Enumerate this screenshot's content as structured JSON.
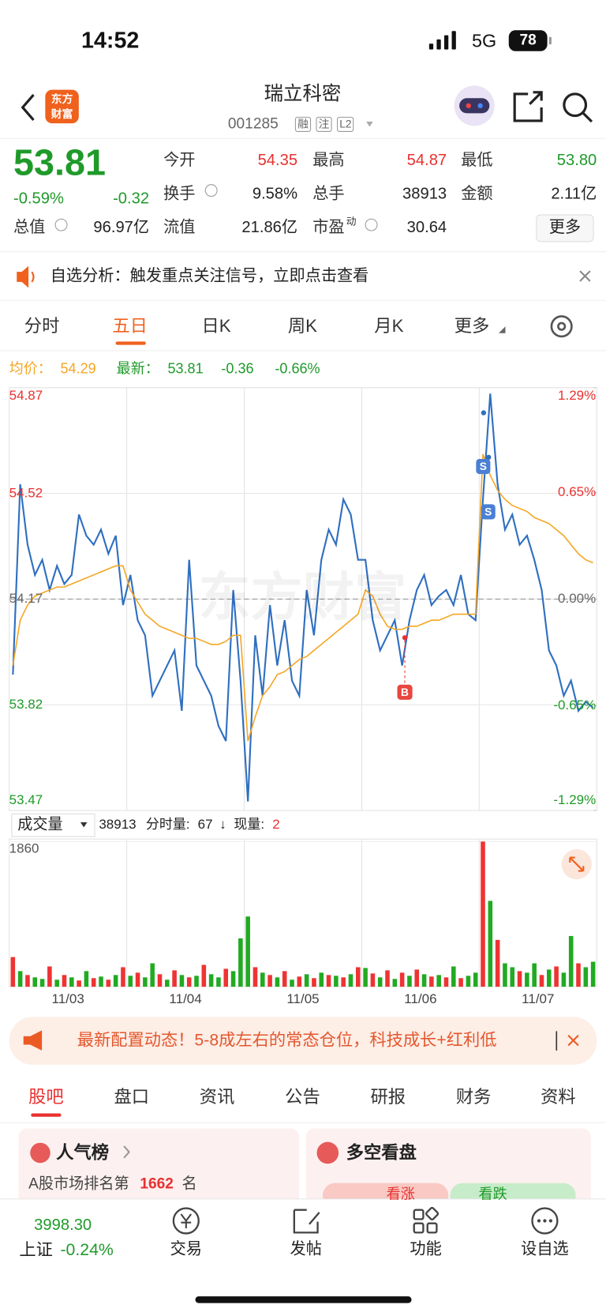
{
  "status_bar": {
    "time": "14:52",
    "network": "5G",
    "battery": "78"
  },
  "header": {
    "logo": [
      "东方",
      "财富"
    ],
    "title": "瑞立科密",
    "code": "001285",
    "badges": [
      "融",
      "注",
      "L2"
    ]
  },
  "quote": {
    "price": "53.81",
    "change_pct": "-0.59%",
    "change": "-0.32",
    "fields": [
      {
        "label": "今开",
        "value": "54.35",
        "color": "#e8312f"
      },
      {
        "label": "最高",
        "value": "54.87",
        "color": "#e8312f"
      },
      {
        "label": "最低",
        "value": "53.80",
        "color": "#1f9a2a"
      },
      {
        "label": "换手",
        "value": "9.58%"
      },
      {
        "label": "总手",
        "value": "38913"
      },
      {
        "label": "金额",
        "value": "2.11亿"
      },
      {
        "label": "总值",
        "value": "96.97亿"
      },
      {
        "label": "流值",
        "value": "21.86亿"
      },
      {
        "label": "市盈",
        "sup": "动",
        "value": "30.64"
      }
    ],
    "more": "更多"
  },
  "alert": "自选分析：触发重点关注信号，立即点击查看",
  "period_tabs": {
    "items": [
      "分时",
      "五日",
      "日K",
      "周K",
      "月K",
      "更多"
    ],
    "active": 1
  },
  "chart_data": [
    {
      "type": "line",
      "watermark": "东方财富",
      "avg_price": 54.29,
      "latest": 53.81,
      "change": -0.36,
      "change_pct": "-0.66%",
      "signal_labels": [
        "S",
        "S",
        "B"
      ],
      "ylim": [
        53.47,
        54.87
      ],
      "yticks": [
        54.87,
        54.52,
        54.17,
        53.82,
        53.47
      ],
      "y2lim": [
        -1.29,
        1.29
      ],
      "y2ticks": [
        {
          "value": 1.29,
          "label": "1.29%"
        },
        {
          "value": 0.65,
          "label": "0.65%"
        },
        {
          "value": 0,
          "label": "0.00%"
        },
        {
          "value": -0.65,
          "label": "-0.65%"
        },
        {
          "value": -1.29,
          "label": "-1.29%"
        }
      ],
      "series": [
        {
          "name": "均价：",
          "color": "#f5a623",
          "values": [
            [
              53.95,
              54.1,
              54.15,
              54.18,
              54.19,
              54.2,
              54.21,
              54.21,
              54.22,
              54.23,
              54.24,
              54.25,
              54.26,
              54.27,
              54.28,
              54.28
            ],
            [
              54.2,
              54.16,
              54.12,
              54.1,
              54.08,
              54.07,
              54.06,
              54.05,
              54.04,
              54.04,
              54.03,
              54.02,
              54.02,
              54.03,
              54.05,
              54.05
            ],
            [
              53.7,
              53.78,
              53.85,
              53.88,
              53.92,
              53.93,
              53.95,
              53.97,
              53.98,
              54.0,
              54.02,
              54.04,
              54.06,
              54.08,
              54.1,
              54.12
            ],
            [
              54.2,
              54.18,
              54.12,
              54.08,
              54.07,
              54.07,
              54.08,
              54.08,
              54.09,
              54.1,
              54.1,
              54.11,
              54.12,
              54.12,
              54.12,
              54.12
            ],
            [
              54.65,
              54.58,
              54.53,
              54.5,
              54.48,
              54.47,
              54.46,
              54.44,
              54.43,
              54.42,
              54.4,
              54.38,
              54.35,
              54.32,
              54.3,
              54.29
            ]
          ]
        },
        {
          "name": "最新：",
          "color": "#2f6fc0",
          "values": [
            [
              53.92,
              54.55,
              54.35,
              54.25,
              54.3,
              54.2,
              54.28,
              54.22,
              54.25,
              54.45,
              54.38,
              54.35,
              54.4,
              54.32,
              54.38,
              54.15
            ],
            [
              54.25,
              54.1,
              54.05,
              53.85,
              53.9,
              53.95,
              54.0,
              53.8,
              54.3,
              53.95,
              53.9,
              53.85,
              53.75,
              53.7,
              54.2,
              53.9
            ],
            [
              53.5,
              54.05,
              53.85,
              54.15,
              53.95,
              54.1,
              53.9,
              53.85,
              54.2,
              54.05,
              54.3,
              54.4,
              54.35,
              54.5,
              54.45,
              54.3
            ],
            [
              54.3,
              54.1,
              54.0,
              54.05,
              54.1,
              53.95,
              54.1,
              54.2,
              54.25,
              54.15,
              54.18,
              54.2,
              54.15,
              54.25,
              54.12,
              54.1
            ],
            [
              54.5,
              54.85,
              54.55,
              54.4,
              54.45,
              54.35,
              54.38,
              54.3,
              54.2,
              54.0,
              53.95,
              53.85,
              53.9,
              53.8,
              53.83,
              53.81
            ]
          ]
        }
      ]
    },
    {
      "type": "bar",
      "volume_label": "成交量",
      "total": "38913",
      "tick_vol_label": "分时量:",
      "tick_vol": "67",
      "arrow": "↓",
      "cur_label": "现量:",
      "cur": "2",
      "categories": [
        "11/03",
        "11/04",
        "11/05",
        "11/06",
        "11/07"
      ],
      "ylim": [
        0,
        1860
      ],
      "yticks": [
        1860
      ],
      "values": [
        [
          380,
          200,
          150,
          120,
          100,
          260,
          90,
          150,
          120,
          80,
          200,
          110,
          130,
          90,
          150,
          250
        ],
        [
          140,
          180,
          120,
          300,
          160,
          90,
          210,
          150,
          120,
          140,
          280,
          160,
          120,
          230,
          200,
          620
        ],
        [
          900,
          250,
          180,
          150,
          120,
          200,
          90,
          130,
          160,
          110,
          180,
          150,
          140,
          120,
          160,
          250
        ],
        [
          240,
          170,
          120,
          210,
          100,
          180,
          140,
          220,
          160,
          130,
          150,
          120,
          260,
          110,
          140,
          180
        ],
        [
          1860,
          1100,
          600,
          300,
          250,
          200,
          180,
          300,
          150,
          220,
          260,
          180,
          650,
          300,
          250,
          320
        ]
      ],
      "colors": [
        [
          "#e33",
          "#2a2",
          "#e33",
          "#2a2",
          "#2a2",
          "#e33",
          "#2a2",
          "#e33",
          "#2a2",
          "#e33",
          "#2a2",
          "#e33",
          "#2a2",
          "#e33",
          "#2a2",
          "#e33"
        ],
        [
          "#2a2",
          "#e33",
          "#2a2",
          "#2a2",
          "#e33",
          "#2a2",
          "#e33",
          "#2a2",
          "#e33",
          "#2a2",
          "#e33",
          "#2a2",
          "#2a2",
          "#e33",
          "#2a2",
          "#2a2"
        ],
        [
          "#2a2",
          "#e33",
          "#2a2",
          "#e33",
          "#2a2",
          "#e33",
          "#2a2",
          "#e33",
          "#2a2",
          "#e33",
          "#2a2",
          "#e33",
          "#2a2",
          "#e33",
          "#2a2",
          "#e33"
        ],
        [
          "#2a2",
          "#e33",
          "#2a2",
          "#e33",
          "#2a2",
          "#e33",
          "#2a2",
          "#e33",
          "#2a2",
          "#e33",
          "#2a2",
          "#e33",
          "#2a2",
          "#e33",
          "#2a2",
          "#2a2"
        ],
        [
          "#e33",
          "#2a2",
          "#e33",
          "#2a2",
          "#2a2",
          "#e33",
          "#2a2",
          "#2a2",
          "#e33",
          "#2a2",
          "#e33",
          "#2a2",
          "#2a2",
          "#e33",
          "#2a2",
          "#2a2"
        ]
      ]
    }
  ],
  "banner": "最新配置动态！5-8成左右的常态仓位，科技成长+红利低",
  "section_tabs": {
    "items": [
      "股吧",
      "盘口",
      "资讯",
      "公告",
      "研报",
      "财务",
      "资料"
    ],
    "active": 0
  },
  "cards": {
    "left": {
      "title": "人气榜",
      "rank_prefix": "A股市场排名第",
      "rank": "1662",
      "rank_suffix": "名"
    },
    "right": {
      "title": "多空看盘",
      "up": "看涨",
      "down": "看跌"
    }
  },
  "bottom_nav": {
    "index_value": "3998.30",
    "index_name": "上证",
    "index_change": "-0.24%",
    "items": [
      "交易",
      "发帖",
      "功能",
      "设自选"
    ]
  }
}
